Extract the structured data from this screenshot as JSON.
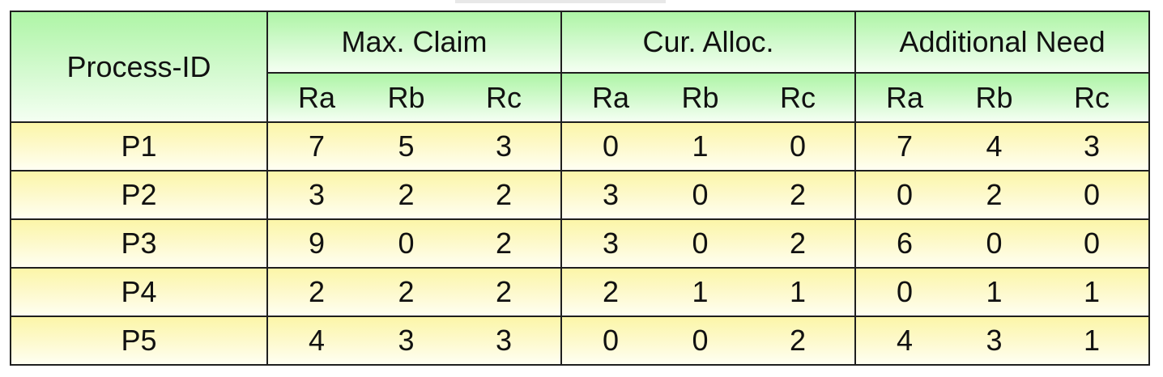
{
  "table": {
    "process_header": "Process-ID",
    "groups": [
      "Max. Claim",
      "Cur. Alloc.",
      "Additional Need"
    ],
    "subheaders": [
      "Ra",
      "Rb",
      "Rc"
    ],
    "rows": [
      {
        "id": "P1",
        "values": [
          [
            7,
            5,
            3
          ],
          [
            0,
            1,
            0
          ],
          [
            7,
            4,
            3
          ]
        ]
      },
      {
        "id": "P2",
        "values": [
          [
            3,
            2,
            2
          ],
          [
            3,
            0,
            2
          ],
          [
            0,
            2,
            0
          ]
        ]
      },
      {
        "id": "P3",
        "values": [
          [
            9,
            0,
            2
          ],
          [
            3,
            0,
            2
          ],
          [
            6,
            0,
            0
          ]
        ]
      },
      {
        "id": "P4",
        "values": [
          [
            2,
            2,
            2
          ],
          [
            2,
            1,
            1
          ],
          [
            0,
            1,
            1
          ]
        ]
      },
      {
        "id": "P5",
        "values": [
          [
            4,
            3,
            3
          ],
          [
            0,
            0,
            2
          ],
          [
            4,
            3,
            1
          ]
        ]
      }
    ]
  }
}
